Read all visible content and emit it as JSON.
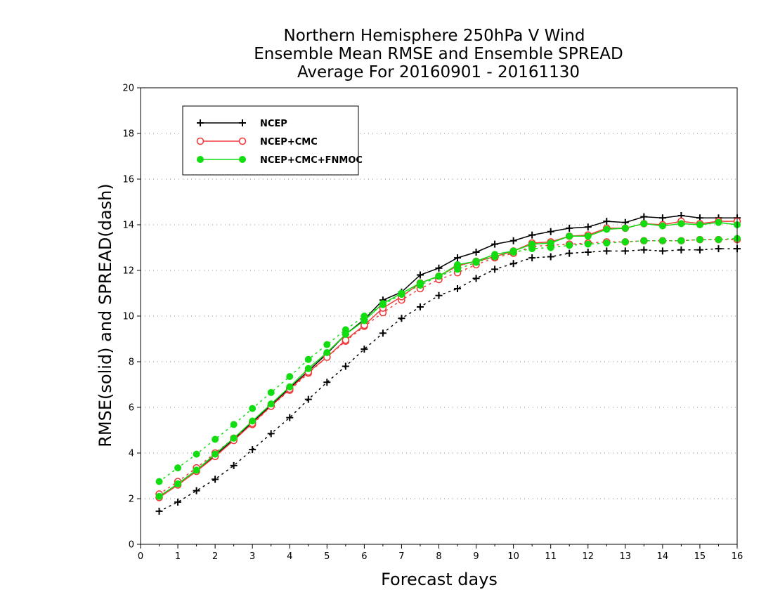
{
  "chart_data": {
    "type": "line",
    "title": [
      "Northern Hemisphere 250hPa V Wind",
      "Ensemble Mean RMSE and Ensemble SPREAD",
      "Average For 20160901 - 20161130"
    ],
    "xlabel": "Forecast days",
    "ylabel": "RMSE(solid) and SPREAD(dash)",
    "xlim": [
      0,
      16
    ],
    "ylim": [
      0,
      20
    ],
    "xticks": [
      0,
      1,
      2,
      3,
      4,
      5,
      6,
      7,
      8,
      9,
      10,
      11,
      12,
      13,
      14,
      15,
      16
    ],
    "yticks": [
      0,
      2,
      4,
      6,
      8,
      10,
      12,
      14,
      16,
      18,
      20
    ],
    "grid": "horizontal dotted",
    "legend_position": "top-left",
    "x": [
      0.5,
      1,
      1.5,
      2,
      2.5,
      3,
      3.5,
      4,
      4.5,
      5,
      5.5,
      6,
      6.5,
      7,
      7.5,
      8,
      8.5,
      9,
      9.5,
      10,
      10.5,
      11,
      11.5,
      12,
      12.5,
      13,
      13.5,
      14,
      14.5,
      15,
      15.5,
      16
    ],
    "series": [
      {
        "name": "NCEP",
        "color": "#000000",
        "marker": "plus",
        "rmse": [
          2.05,
          2.65,
          3.25,
          3.9,
          4.6,
          5.35,
          6.1,
          6.85,
          7.6,
          8.35,
          9.2,
          9.85,
          10.7,
          11.05,
          11.8,
          12.1,
          12.55,
          12.8,
          13.15,
          13.3,
          13.55,
          13.7,
          13.85,
          13.9,
          14.15,
          14.1,
          14.35,
          14.3,
          14.4,
          14.3,
          14.3,
          14.3
        ],
        "spread": [
          1.45,
          1.85,
          2.35,
          2.85,
          3.45,
          4.15,
          4.85,
          5.55,
          6.35,
          7.1,
          7.8,
          8.55,
          9.25,
          9.9,
          10.4,
          10.9,
          11.2,
          11.65,
          12.05,
          12.3,
          12.55,
          12.6,
          12.75,
          12.8,
          12.85,
          12.85,
          12.9,
          12.85,
          12.9,
          12.9,
          12.95,
          12.95
        ]
      },
      {
        "name": "NCEP+CMC",
        "color": "#ee3b3b",
        "marker": "open-circle",
        "rmse": [
          2.05,
          2.6,
          3.2,
          3.85,
          4.55,
          5.3,
          6.05,
          6.8,
          7.55,
          8.2,
          8.95,
          9.6,
          10.35,
          10.85,
          11.45,
          11.75,
          12.2,
          12.4,
          12.6,
          12.85,
          13.2,
          13.25,
          13.5,
          13.55,
          13.85,
          13.85,
          14.05,
          14.0,
          14.15,
          14.05,
          14.15,
          14.15
        ],
        "spread": [
          2.2,
          2.75,
          3.35,
          4.0,
          4.65,
          5.25,
          6.05,
          6.75,
          7.5,
          8.2,
          8.9,
          9.55,
          10.15,
          10.7,
          11.2,
          11.6,
          11.9,
          12.25,
          12.55,
          12.75,
          13.05,
          13.1,
          13.15,
          13.2,
          13.25,
          13.25,
          13.3,
          13.3,
          13.3,
          13.35,
          13.35,
          13.35
        ]
      },
      {
        "name": "NCEP+CMC+FNMOC",
        "color": "#11dd11",
        "marker": "filled-circle",
        "rmse": [
          2.1,
          2.65,
          3.25,
          3.95,
          4.65,
          5.4,
          6.15,
          6.9,
          7.7,
          8.4,
          9.2,
          9.8,
          10.55,
          11.0,
          11.45,
          11.75,
          12.25,
          12.4,
          12.7,
          12.85,
          13.15,
          13.2,
          13.5,
          13.5,
          13.8,
          13.85,
          14.05,
          13.95,
          14.05,
          14.0,
          14.1,
          14.0
        ],
        "spread": [
          2.75,
          3.35,
          3.95,
          4.6,
          5.25,
          5.95,
          6.65,
          7.35,
          8.1,
          8.75,
          9.4,
          10.0,
          10.5,
          10.95,
          11.35,
          11.75,
          12.05,
          12.35,
          12.6,
          12.8,
          12.95,
          13.0,
          13.1,
          13.15,
          13.2,
          13.25,
          13.3,
          13.3,
          13.3,
          13.35,
          13.35,
          13.4
        ]
      }
    ]
  }
}
